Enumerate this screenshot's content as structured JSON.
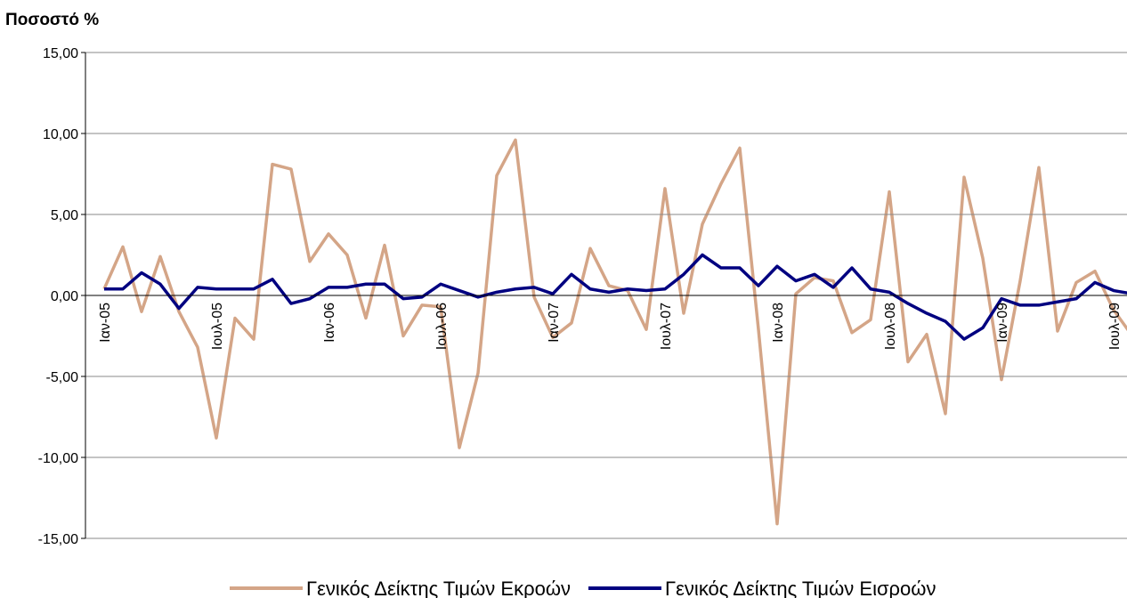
{
  "chart_data": {
    "type": "line",
    "title": "Ποσοστό %",
    "categories": [
      "Ιαν-05",
      null,
      null,
      null,
      null,
      null,
      "Ιουλ-05",
      null,
      null,
      null,
      null,
      null,
      "Ιαν-06",
      null,
      null,
      null,
      null,
      null,
      "Ιουλ-06",
      null,
      null,
      null,
      null,
      null,
      "Ιαν-07",
      null,
      null,
      null,
      null,
      null,
      "Ιουλ-07",
      null,
      null,
      null,
      null,
      null,
      "Ιαν-08",
      null,
      null,
      null,
      null,
      null,
      "Ιουλ-08",
      null,
      null,
      null,
      null,
      null,
      "Ιαν-09",
      null,
      null,
      null,
      null,
      null,
      "Ιουλ-09",
      null
    ],
    "series": [
      {
        "name": "Γενικός Δείκτης Τιμών Εκροών",
        "color": "#d4a587",
        "values": [
          0.4,
          3.0,
          -1.0,
          2.4,
          -1.0,
          -3.2,
          -8.8,
          -1.4,
          -2.7,
          8.1,
          7.8,
          2.1,
          3.8,
          2.5,
          -1.4,
          3.1,
          -2.5,
          -0.6,
          -0.7,
          -9.4,
          -4.8,
          7.4,
          9.6,
          -0.1,
          -2.6,
          -1.7,
          2.9,
          0.6,
          0.3,
          -2.1,
          6.6,
          -1.1,
          4.4,
          6.9,
          9.1,
          -2.1,
          -14.1,
          0.1,
          1.1,
          0.9,
          -2.3,
          -1.5,
          6.4,
          -4.1,
          -2.4,
          -7.3,
          7.3,
          2.3,
          -5.2,
          0.9,
          7.9,
          -2.2,
          0.8,
          1.5,
          -0.9,
          -2.5
        ]
      },
      {
        "name": "Γενικός Δείκτης Τιμών Εισροών",
        "color": "#000080",
        "values": [
          0.4,
          0.4,
          1.4,
          0.7,
          -0.8,
          0.5,
          0.4,
          0.4,
          0.4,
          1.0,
          -0.5,
          -0.2,
          0.5,
          0.5,
          0.7,
          0.7,
          -0.2,
          -0.1,
          0.7,
          0.3,
          -0.1,
          0.2,
          0.4,
          0.5,
          0.1,
          1.3,
          0.4,
          0.2,
          0.4,
          0.3,
          0.4,
          1.3,
          2.5,
          1.7,
          1.7,
          0.6,
          1.8,
          0.9,
          1.3,
          0.5,
          1.7,
          0.4,
          0.2,
          -0.5,
          -1.1,
          -1.6,
          -2.7,
          -2.0,
          -0.2,
          -0.6,
          -0.6,
          -0.4,
          -0.2,
          0.8,
          0.3,
          0.1
        ]
      }
    ],
    "ylim": [
      -15,
      15
    ],
    "yticks": [
      {
        "value": -15,
        "label": "-15,00"
      },
      {
        "value": -10,
        "label": "-10,00"
      },
      {
        "value": -5,
        "label": "-5,00"
      },
      {
        "value": 0,
        "label": "0,00"
      },
      {
        "value": 5,
        "label": "5,00"
      },
      {
        "value": 10,
        "label": "10,00"
      },
      {
        "value": 15,
        "label": "15,00"
      }
    ],
    "grid": true,
    "legend": "bottom"
  }
}
